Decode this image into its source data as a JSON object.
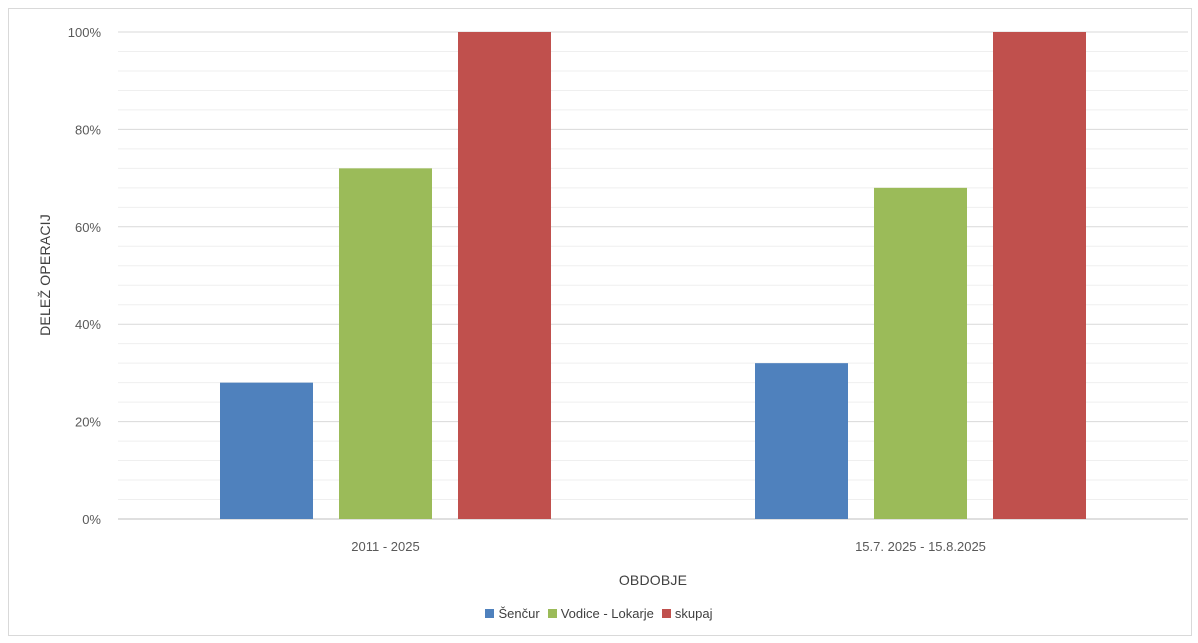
{
  "chart_data": {
    "type": "bar",
    "categories": [
      "2011 - 2025",
      "15.7. 2025 - 15.8.2025"
    ],
    "series": [
      {
        "name": "Šenčur",
        "values": [
          0.28,
          0.32
        ],
        "color": "#4f81bd"
      },
      {
        "name": "Vodice - Lokarje",
        "values": [
          0.72,
          0.68
        ],
        "color": "#9bbb59"
      },
      {
        "name": "skupaj",
        "values": [
          1.0,
          1.0
        ],
        "color": "#c0504d"
      }
    ],
    "xlabel": "OBDOBJE",
    "ylabel": "DELEŽ OPERACIJ",
    "ylim": [
      0,
      1
    ],
    "yticks": [
      "0%",
      "20%",
      "40%",
      "60%",
      "80%",
      "100%"
    ],
    "grid": true,
    "legend_position": "bottom"
  }
}
